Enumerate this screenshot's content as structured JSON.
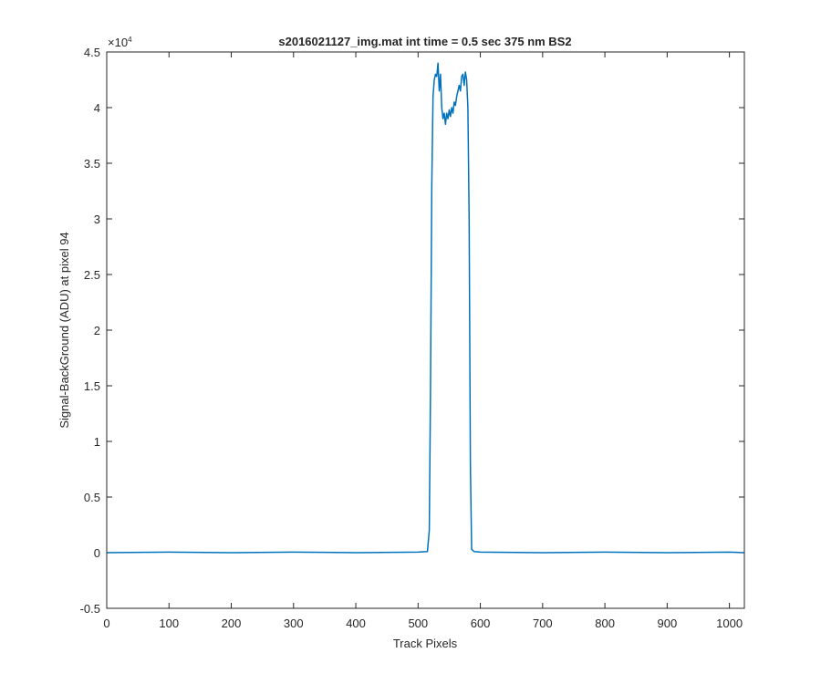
{
  "chart_data": {
    "type": "line",
    "title": "s2016021127_img.mat int time = 0.5 sec  375 nm BS2",
    "xlabel": "Track Pixels",
    "ylabel": "Signal-BackGround (ADU) at pixel 94",
    "xlim": [
      0,
      1024
    ],
    "ylim": [
      -5000,
      45000
    ],
    "xticks": [
      0,
      100,
      200,
      300,
      400,
      500,
      600,
      700,
      800,
      900,
      1000
    ],
    "xtick_labels": [
      "0",
      "100",
      "200",
      "300",
      "400",
      "500",
      "600",
      "700",
      "800",
      "900",
      "1000"
    ],
    "yticks": [
      -5000,
      0,
      5000,
      10000,
      15000,
      20000,
      25000,
      30000,
      35000,
      40000,
      45000
    ],
    "ytick_labels": [
      "-0.5",
      "0",
      "0.5",
      "1",
      "1.5",
      "2",
      "2.5",
      "3",
      "3.5",
      "4",
      "4.5"
    ],
    "y_exponent_label": "×10",
    "y_exponent_power": "4",
    "grid": false,
    "line_color": "#0072BD",
    "series": [
      {
        "x": [
          0,
          100,
          200,
          300,
          400,
          500,
          515,
          518,
          520,
          522,
          524,
          526,
          528,
          530,
          532,
          534,
          536,
          538,
          540,
          542,
          544,
          546,
          548,
          550,
          552,
          554,
          556,
          558,
          560,
          562,
          564,
          566,
          568,
          570,
          572,
          574,
          576,
          578,
          580,
          582,
          584,
          586,
          590,
          600,
          700,
          800,
          900,
          1000,
          1024
        ],
        "y": [
          0,
          50,
          0,
          50,
          0,
          50,
          100,
          2000,
          15000,
          33000,
          41000,
          42500,
          43000,
          42800,
          44000,
          41500,
          43000,
          40000,
          39000,
          39500,
          38500,
          39500,
          39000,
          39800,
          39200,
          40000,
          39500,
          40500,
          40200,
          41000,
          41500,
          42000,
          41500,
          42800,
          43000,
          42000,
          43200,
          42500,
          40000,
          30000,
          8000,
          300,
          100,
          50,
          0,
          50,
          0,
          50,
          0
        ]
      }
    ]
  }
}
